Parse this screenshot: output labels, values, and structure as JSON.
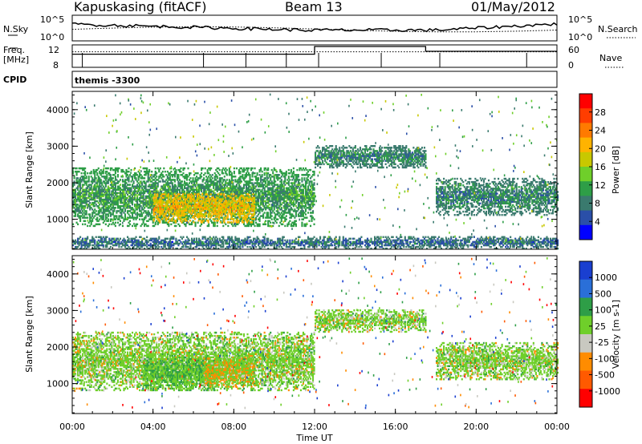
{
  "header": {
    "station": "Kapuskasing (fitACF)",
    "beam": "Beam 13",
    "date": "01/May/2012"
  },
  "top_panels": {
    "nsky_label": "N.Sky",
    "nsky_ticks": [
      "10^5",
      "10^0"
    ],
    "nsearch_label": "N.Search",
    "nsearch_ticks": [
      "10^5",
      "10^0"
    ],
    "freq_label_1": "Freq.",
    "freq_label_2": "[MHz]",
    "freq_ticks": [
      "12",
      "8"
    ],
    "nave_label": "Nave",
    "nave_ticks": [
      "60",
      "0"
    ],
    "cpid_label": "CPID",
    "cpid_value": "themis -3300"
  },
  "chart_data": [
    {
      "type": "heatmap",
      "name": "Power",
      "ylabel": "Slant Range [km]",
      "xlabel": "",
      "ylim": [
        180,
        4500
      ],
      "yticks": [
        "4000",
        "3000",
        "2000",
        "1000"
      ],
      "colorbar": {
        "label": "Power [dB]",
        "ticks": [
          "28",
          "24",
          "20",
          "16",
          "12",
          "8",
          "4"
        ],
        "colors": [
          "#ff0000",
          "#ff3d00",
          "#ff7a00",
          "#ffb300",
          "#c8c800",
          "#6fcf2a",
          "#2e9e47",
          "#3a7a6e",
          "#2a4fa8",
          "#0000ff"
        ]
      },
      "echo_regions": [
        {
          "t_start": 0.0,
          "t_end": 12.0,
          "range_low": 800,
          "range_high": 2400,
          "power_db": 10
        },
        {
          "t_start": 4.0,
          "t_end": 9.0,
          "range_low": 900,
          "range_high": 1700,
          "power_db": 20
        },
        {
          "t_start": 12.0,
          "t_end": 17.5,
          "range_low": 2400,
          "range_high": 3000,
          "power_db": 8
        },
        {
          "t_start": 18.0,
          "t_end": 24.0,
          "range_low": 1100,
          "range_high": 2100,
          "power_db": 8
        },
        {
          "t_start": 0.0,
          "t_end": 24.0,
          "range_low": 180,
          "range_high": 500,
          "power_db": 6
        }
      ]
    },
    {
      "type": "heatmap",
      "name": "Velocity",
      "ylabel": "Slant Range [km]",
      "xlabel": "Time UT",
      "ylim": [
        180,
        4500
      ],
      "yticks": [
        "4000",
        "3000",
        "2000",
        "1000"
      ],
      "colorbar": {
        "label": "Velocity [m s-1]",
        "ticks": [
          "1000",
          "500",
          "100",
          "25",
          "-25",
          "-100",
          "-500",
          "-1000"
        ],
        "colors": [
          "#1a3fd0",
          "#2a6fd8",
          "#2e9e47",
          "#6fcf2a",
          "#c8c8c0",
          "#ff8c00",
          "#ff5a00",
          "#ff0000"
        ]
      },
      "echo_regions": [
        {
          "t_start": 0.0,
          "t_end": 12.0,
          "range_low": 800,
          "range_high": 2400,
          "velocity": 0
        },
        {
          "t_start": 3.5,
          "t_end": 7.0,
          "range_low": 800,
          "range_high": 1700,
          "velocity": 150
        },
        {
          "t_start": 6.5,
          "t_end": 9.0,
          "range_low": 900,
          "range_high": 1700,
          "velocity": -150
        },
        {
          "t_start": 12.0,
          "t_end": 17.5,
          "range_low": 2400,
          "range_high": 3000,
          "velocity": 0
        },
        {
          "t_start": 18.0,
          "t_end": 24.0,
          "range_low": 1100,
          "range_high": 2100,
          "velocity": 0
        }
      ]
    }
  ],
  "x_axis": {
    "label": "Time UT",
    "ticks": [
      "00:00",
      "04:00",
      "08:00",
      "12:00",
      "16:00",
      "20:00",
      "00:00"
    ],
    "range_hours": [
      0,
      24
    ]
  }
}
